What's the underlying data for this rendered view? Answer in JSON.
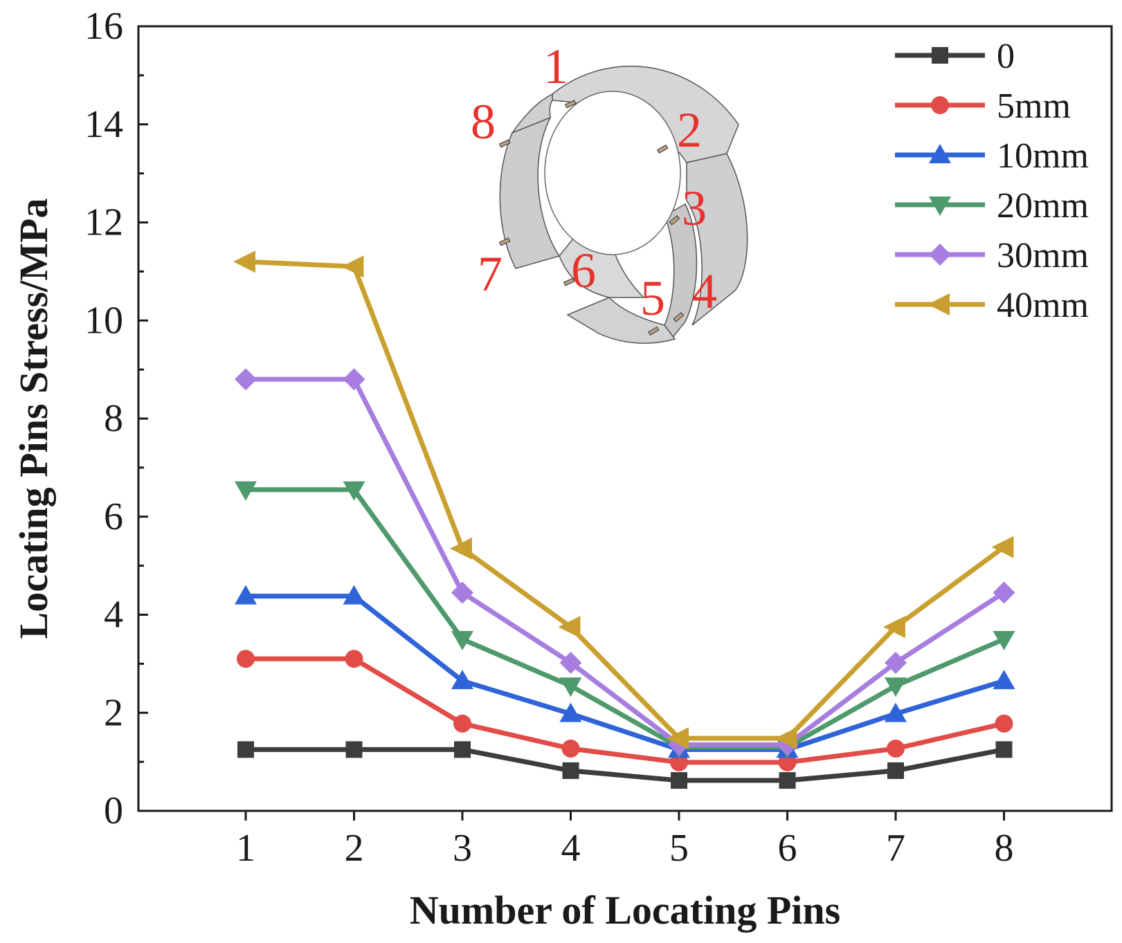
{
  "chart_data": {
    "type": "line",
    "title": "",
    "xlabel": "Number of Locating Pins",
    "ylabel": "Locating Pins Stress/MPa",
    "x": [
      1,
      2,
      3,
      4,
      5,
      6,
      7,
      8
    ],
    "xticks": [
      "1",
      "2",
      "3",
      "4",
      "5",
      "6",
      "7",
      "8"
    ],
    "yticks": [
      "0",
      "2",
      "4",
      "6",
      "8",
      "10",
      "12",
      "14",
      "16"
    ],
    "xlim": [
      0,
      9
    ],
    "ylim": [
      0,
      16
    ],
    "legend_position": "top-right",
    "series": [
      {
        "name": "0",
        "color": "#3d3d3d",
        "marker": "square",
        "values": [
          1.25,
          1.25,
          1.25,
          0.82,
          0.62,
          0.62,
          0.82,
          1.25
        ]
      },
      {
        "name": "5mm",
        "color": "#e24c48",
        "marker": "circle",
        "values": [
          3.1,
          3.1,
          1.78,
          1.27,
          0.99,
          0.99,
          1.27,
          1.78
        ]
      },
      {
        "name": "10mm",
        "color": "#2f63d8",
        "marker": "triangle-up",
        "values": [
          4.38,
          4.38,
          2.65,
          1.98,
          1.25,
          1.25,
          1.98,
          2.65
        ]
      },
      {
        "name": "20mm",
        "color": "#4f9a6c",
        "marker": "triangle-down",
        "values": [
          6.55,
          6.55,
          3.5,
          2.55,
          1.3,
          1.3,
          2.55,
          3.5
        ]
      },
      {
        "name": "30mm",
        "color": "#a77ee0",
        "marker": "diamond",
        "values": [
          8.8,
          8.8,
          4.45,
          3.02,
          1.35,
          1.35,
          3.02,
          4.45
        ]
      },
      {
        "name": "40mm",
        "color": "#c9a030",
        "marker": "triangle-left",
        "values": [
          11.2,
          11.1,
          5.35,
          3.75,
          1.48,
          1.48,
          3.75,
          5.38
        ]
      }
    ],
    "inset": {
      "description": "segmented ring diagram",
      "labels": [
        "1",
        "2",
        "3",
        "4",
        "5",
        "6",
        "7",
        "8"
      ]
    }
  }
}
